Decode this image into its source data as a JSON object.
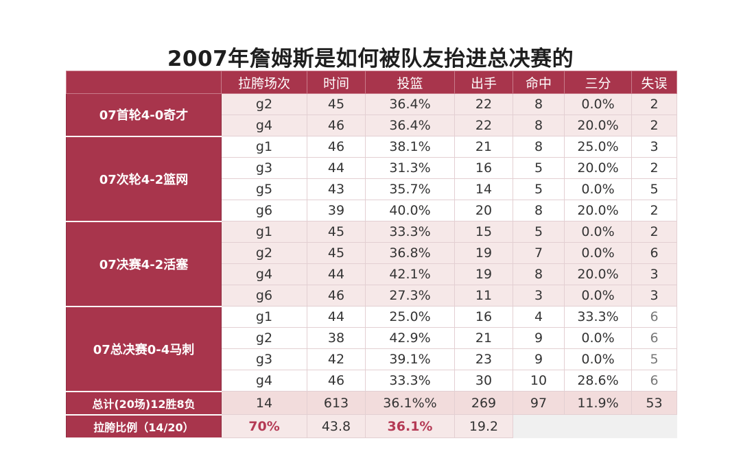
{
  "title": "2007年詹姆斯是如何被队友抬进总决赛的",
  "headers": [
    "拉胯场次",
    "时间",
    "投篮",
    "出手",
    "命中",
    "三分",
    "失误"
  ],
  "series": [
    {
      "label": "07首轮4-0奇才",
      "rows": [
        [
          "g2",
          "45",
          "36.4%",
          "22",
          "8",
          "0.0%",
          "2"
        ],
        [
          "g4",
          "46",
          "36.4%",
          "22",
          "8",
          "20.0%",
          "2"
        ]
      ]
    },
    {
      "label": "07次轮4-2篮网",
      "rows": [
        [
          "g1",
          "46",
          "38.1%",
          "21",
          "8",
          "25.0%",
          "3"
        ],
        [
          "g3",
          "44",
          "31.3%",
          "16",
          "5",
          "20.0%",
          "2"
        ],
        [
          "g5",
          "43",
          "35.7%",
          "14",
          "5",
          "0.0%",
          "5"
        ],
        [
          "g6",
          "39",
          "40.0%",
          "20",
          "8",
          "20.0%",
          "2"
        ]
      ]
    },
    {
      "label": "07决赛4-2活塞",
      "rows": [
        [
          "g1",
          "45",
          "33.3%",
          "15",
          "5",
          "0.0%",
          "2"
        ],
        [
          "g2",
          "45",
          "36.8%",
          "19",
          "7",
          "0.0%",
          "6"
        ],
        [
          "g4",
          "44",
          "42.1%",
          "19",
          "8",
          "20.0%",
          "3"
        ],
        [
          "g6",
          "46",
          "27.3%",
          "11",
          "3",
          "0.0%",
          "3"
        ]
      ]
    },
    {
      "label": "07总决赛0-4马刺",
      "rows": [
        [
          "g1",
          "44",
          "25.0%",
          "16",
          "4",
          "33.3%",
          "6"
        ],
        [
          "g2",
          "38",
          "42.9%",
          "21",
          "9",
          "0.0%",
          "6"
        ],
        [
          "g3",
          "42",
          "39.1%",
          "23",
          "9",
          "0.0%",
          "5"
        ],
        [
          "g4",
          "46",
          "33.3%",
          "30",
          "10",
          "28.6%",
          "6"
        ]
      ]
    }
  ],
  "total": {
    "label": "总计(20场)12胜8负",
    "values": [
      "14",
      "613",
      "36.1%%",
      "269",
      "97",
      "11.9%",
      "53"
    ]
  },
  "ratio": {
    "label": "拉胯比例（14/20）",
    "values": [
      "70%",
      "43.8",
      "36.1%",
      "19.2"
    ]
  },
  "colors": {
    "header_bg": "#a8354c",
    "accent_text": "#b43a55",
    "stripe": "#f6e8e8"
  }
}
